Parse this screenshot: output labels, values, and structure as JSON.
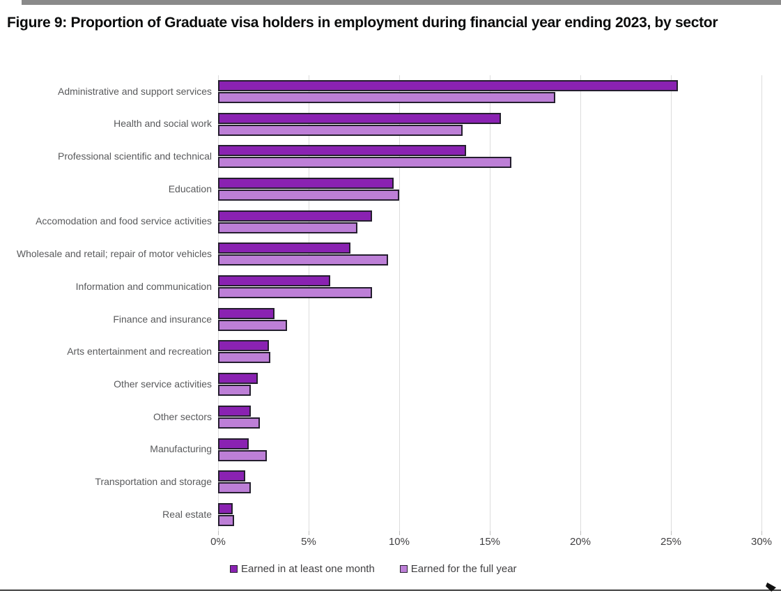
{
  "title": "Figure 9: Proportion of Graduate visa holders in employment during financial year ending 2023, by sector",
  "chart_data": {
    "type": "bar",
    "orientation": "horizontal",
    "title": "Figure 9: Proportion of Graduate visa holders in employment during financial year ending 2023, by sector",
    "categories": [
      "Administrative and support services",
      "Health and social work",
      "Professional scientific and technical",
      "Education",
      "Accomodation and food service activities",
      "Wholesale and retail; repair of motor vehicles",
      "Information and communication",
      "Finance and insurance",
      "Arts entertainment and recreation",
      "Other service activities",
      "Other sectors",
      "Manufacturing",
      "Transportation and storage",
      "Real estate"
    ],
    "series": [
      {
        "name": "Earned in at least one month",
        "color": "#8a22b2",
        "values": [
          25.4,
          15.6,
          13.7,
          9.7,
          8.5,
          7.3,
          6.2,
          3.1,
          2.8,
          2.2,
          1.8,
          1.7,
          1.5,
          0.8
        ]
      },
      {
        "name": "Earned for the full year",
        "color": "#bd7fd7",
        "values": [
          18.6,
          13.5,
          16.2,
          10.0,
          7.7,
          9.4,
          8.5,
          3.8,
          2.9,
          1.8,
          2.3,
          2.7,
          1.8,
          0.9
        ]
      }
    ],
    "xlim": [
      0,
      30
    ],
    "x_ticks": [
      "0%",
      "5%",
      "10%",
      "15%",
      "20%",
      "25%",
      "30%"
    ],
    "xlabel": "",
    "ylabel": "",
    "grid": true,
    "legend_position": "bottom",
    "bar_border_color": "#241e2e",
    "gridline_color": "#dcdcdc"
  }
}
